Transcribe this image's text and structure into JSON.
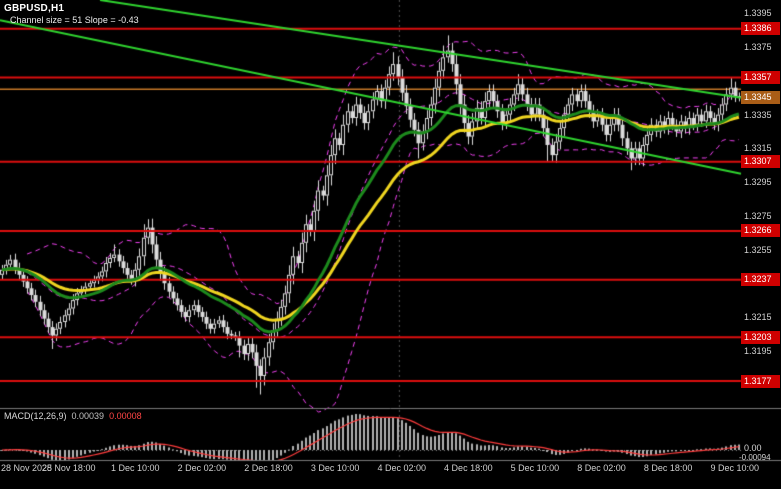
{
  "header": {
    "symbol_label": "GBPUSD,H1",
    "channel_info": "Channel size = 51 Slope = -0.43"
  },
  "colors": {
    "background": "#000000",
    "text": "#ffffff",
    "axis_text": "#d2d2d2",
    "level_red": "#dd0e0e",
    "level_badge_bg": "#cf0000",
    "current_badge_bg": "#a95d17",
    "ask_line": "#c87a28",
    "channel_green": "#2fd32f",
    "ma_green": "#1d8a1d",
    "ma_yellow": "#efd520",
    "bollinger_magenta": "#f241f2",
    "candle": "#dcdcdc",
    "candle_up_fill": "#000000",
    "macd_bar": "#b2b2b2",
    "macd_signal": "#ff3c3c",
    "separator": "#7a7a7a",
    "day_separator": "#4f4f4f",
    "macd_zero_dotted": "#8a8a8a"
  },
  "chart_data": {
    "type": "candlestick",
    "symbol": "GBPUSD",
    "timeframe": "H1",
    "price_range": [
      1.3161,
      1.3403
    ],
    "price_tick_labels": [
      1.3395,
      1.3375,
      1.3335,
      1.3315,
      1.3295,
      1.3275,
      1.3255,
      1.3215,
      1.3195
    ],
    "resistance_support_levels": [
      1.3386,
      1.3357,
      1.3307,
      1.3266,
      1.3237,
      1.3203,
      1.3177
    ],
    "current_price": 1.3345,
    "ask_level": 1.335,
    "time_labels": [
      "28 Nov 2025",
      "28 Nov 18:00",
      "1 Dec 10:00",
      "2 Dec 02:00",
      "2 Dec 18:00",
      "3 Dec 10:00",
      "4 Dec 02:00",
      "4 Dec 18:00",
      "5 Dec 10:00",
      "8 Dec 02:00",
      "8 Dec 18:00",
      "9 Dec 10:00"
    ],
    "time_labels_every": 16,
    "day_separator_frac": 0.539,
    "channel_lines": [
      {
        "x1_frac": 0.0,
        "p1": 1.3391,
        "x2_frac": 1.0,
        "p2": 1.33
      },
      {
        "x1_frac": 0.135,
        "p1": 1.3403,
        "x2_frac": 1.0,
        "p2": 1.3345
      }
    ],
    "indicators": {
      "ma_green_period": 24,
      "ma_yellow_period": 38,
      "bollinger_period": 20,
      "bollinger_dev": 2,
      "macd_fast": 12,
      "macd_slow": 26,
      "macd_signal_period": 9
    },
    "closes": [
      1.3243,
      1.3246,
      1.3249,
      1.3244,
      1.324,
      1.3236,
      1.3232,
      1.3228,
      1.3224,
      1.3219,
      1.3214,
      1.3209,
      1.3204,
      1.3208,
      1.3212,
      1.3216,
      1.322,
      1.3225,
      1.3229,
      1.3231,
      1.3233,
      1.3235,
      1.3237,
      1.3239,
      1.3242,
      1.3247,
      1.325,
      1.3252,
      1.3248,
      1.3244,
      1.324,
      1.3237,
      1.3243,
      1.3251,
      1.3262,
      1.3268,
      1.3258,
      1.3249,
      1.3241,
      1.3235,
      1.323,
      1.3226,
      1.3222,
      1.3218,
      1.3215,
      1.3219,
      1.3222,
      1.3218,
      1.3215,
      1.3211,
      1.3208,
      1.3211,
      1.3213,
      1.3209,
      1.3205,
      1.3204,
      1.3203,
      1.3198,
      1.3193,
      1.3199,
      1.3194,
      1.3186,
      1.318,
      1.3191,
      1.32,
      1.3207,
      1.3214,
      1.3221,
      1.3229,
      1.324,
      1.3251,
      1.3247,
      1.3259,
      1.327,
      1.3266,
      1.3278,
      1.329,
      1.3287,
      1.3299,
      1.3311,
      1.3321,
      1.3317,
      1.3329,
      1.3337,
      1.3333,
      1.3341,
      1.3336,
      1.333,
      1.3337,
      1.3344,
      1.3349,
      1.3343,
      1.3351,
      1.3359,
      1.3365,
      1.3357,
      1.3348,
      1.334,
      1.3332,
      1.3326,
      1.3318,
      1.3325,
      1.3333,
      1.3341,
      1.3351,
      1.3361,
      1.3369,
      1.3373,
      1.3365,
      1.3353,
      1.3341,
      1.333,
      1.3322,
      1.3331,
      1.3339,
      1.3333,
      1.3343,
      1.3349,
      1.3343,
      1.3337,
      1.333,
      1.3335,
      1.3341,
      1.3347,
      1.3353,
      1.3347,
      1.3341,
      1.3335,
      1.3341,
      1.3335,
      1.3327,
      1.3317,
      1.3311,
      1.3319,
      1.3327,
      1.3335,
      1.3341,
      1.3347,
      1.3343,
      1.3349,
      1.3343,
      1.3337,
      1.3331,
      1.3335,
      1.3329,
      1.3323,
      1.3329,
      1.3335,
      1.3329,
      1.3321,
      1.3315,
      1.3309,
      1.3315,
      1.3309,
      1.3317,
      1.3323,
      1.3329,
      1.3325,
      1.3331,
      1.3327,
      1.3333,
      1.3329,
      1.3325,
      1.3331,
      1.3327,
      1.3333,
      1.3329,
      1.3335,
      1.3331,
      1.3337,
      1.3333,
      1.3329,
      1.3335,
      1.3341,
      1.3347,
      1.3351,
      1.3346,
      1.3345
    ],
    "high_overrides": {
      "27": 1.3258,
      "34": 1.327,
      "35": 1.3273,
      "94": 1.3372,
      "106": 1.3376,
      "107": 1.3382,
      "124": 1.3359,
      "175": 1.3357
    },
    "low_overrides": {
      "12": 1.3196,
      "57": 1.3191,
      "61": 1.3173,
      "62": 1.3169,
      "100": 1.3309,
      "131": 1.3307,
      "151": 1.3302
    },
    "macd": {
      "label": "MACD(12,26,9)",
      "value_main": "0.00039",
      "value_signal": "0.00008",
      "axis_zero_label": "0.00",
      "axis_min_label": "-0.00094"
    }
  }
}
